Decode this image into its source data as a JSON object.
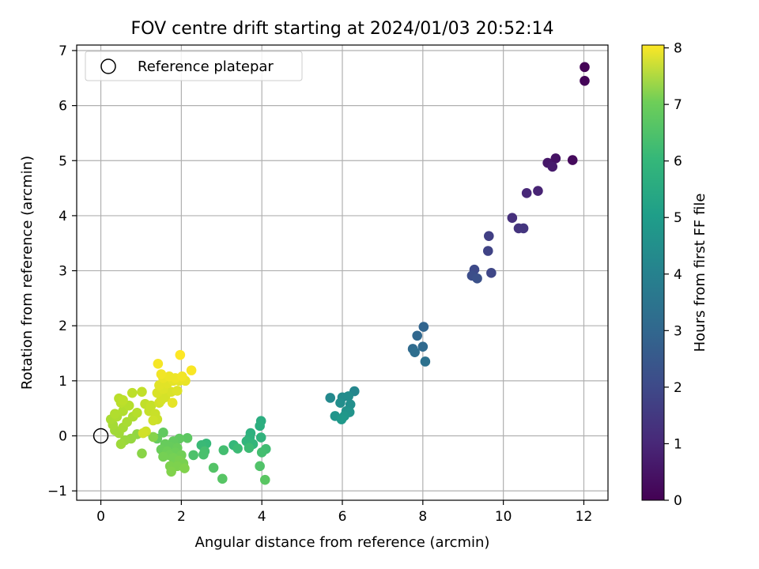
{
  "chart_data": {
    "type": "scatter",
    "title": "FOV centre drift starting at 2024/01/03 20:52:14",
    "xlabel": "Angular distance from reference (arcmin)",
    "ylabel": "Rotation from reference (arcmin)",
    "xlim": [
      -0.6,
      12.6
    ],
    "ylim": [
      -1.17,
      7.1
    ],
    "x_ticks": [
      0,
      2,
      4,
      6,
      8,
      10,
      12
    ],
    "y_ticks": [
      -1,
      0,
      1,
      2,
      3,
      4,
      5,
      6,
      7
    ],
    "grid": true,
    "legend": {
      "placement": "top-left",
      "entries": [
        "Reference platepar"
      ]
    },
    "reference_point": {
      "x": 0,
      "y": 0
    },
    "colorbar": {
      "label": "Hours from first FF file",
      "range": [
        0,
        8.05
      ],
      "ticks": [
        0,
        1,
        2,
        3,
        4,
        5,
        6,
        7,
        8
      ],
      "colormap": "viridis"
    },
    "points": [
      {
        "x": 12.02,
        "y": 6.7,
        "c": 0.05
      },
      {
        "x": 12.02,
        "y": 6.45,
        "c": 0.1
      },
      {
        "x": 11.72,
        "y": 5.01,
        "c": 0.2
      },
      {
        "x": 11.3,
        "y": 5.04,
        "c": 0.4
      },
      {
        "x": 11.1,
        "y": 4.96,
        "c": 0.5
      },
      {
        "x": 11.22,
        "y": 4.89,
        "c": 0.6
      },
      {
        "x": 10.86,
        "y": 4.45,
        "c": 0.8
      },
      {
        "x": 10.58,
        "y": 4.41,
        "c": 0.9
      },
      {
        "x": 10.22,
        "y": 3.96,
        "c": 1.1
      },
      {
        "x": 10.38,
        "y": 3.77,
        "c": 1.2
      },
      {
        "x": 10.5,
        "y": 3.77,
        "c": 1.25
      },
      {
        "x": 9.64,
        "y": 3.63,
        "c": 1.5
      },
      {
        "x": 9.62,
        "y": 3.36,
        "c": 1.6
      },
      {
        "x": 9.28,
        "y": 3.02,
        "c": 1.8
      },
      {
        "x": 9.22,
        "y": 2.91,
        "c": 1.9
      },
      {
        "x": 9.7,
        "y": 2.96,
        "c": 1.7
      },
      {
        "x": 9.35,
        "y": 2.86,
        "c": 2.0
      },
      {
        "x": 8.02,
        "y": 1.98,
        "c": 2.6
      },
      {
        "x": 7.86,
        "y": 1.82,
        "c": 2.7
      },
      {
        "x": 8.0,
        "y": 1.62,
        "c": 2.75
      },
      {
        "x": 7.75,
        "y": 1.58,
        "c": 2.8
      },
      {
        "x": 7.8,
        "y": 1.52,
        "c": 2.9
      },
      {
        "x": 8.06,
        "y": 1.35,
        "c": 3.0
      },
      {
        "x": 6.3,
        "y": 0.81,
        "c": 3.7
      },
      {
        "x": 5.7,
        "y": 0.69,
        "c": 3.8
      },
      {
        "x": 6.0,
        "y": 0.7,
        "c": 3.85
      },
      {
        "x": 6.15,
        "y": 0.72,
        "c": 3.9
      },
      {
        "x": 5.95,
        "y": 0.6,
        "c": 3.95
      },
      {
        "x": 6.2,
        "y": 0.57,
        "c": 4.0
      },
      {
        "x": 6.1,
        "y": 0.45,
        "c": 4.1
      },
      {
        "x": 6.18,
        "y": 0.43,
        "c": 4.15
      },
      {
        "x": 5.82,
        "y": 0.36,
        "c": 4.2
      },
      {
        "x": 6.05,
        "y": 0.36,
        "c": 4.25
      },
      {
        "x": 5.98,
        "y": 0.3,
        "c": 4.3
      },
      {
        "x": 3.98,
        "y": 0.27,
        "c": 5.0
      },
      {
        "x": 3.95,
        "y": 0.18,
        "c": 5.05
      },
      {
        "x": 3.72,
        "y": 0.05,
        "c": 5.1
      },
      {
        "x": 3.7,
        "y": -0.03,
        "c": 5.15
      },
      {
        "x": 3.98,
        "y": -0.03,
        "c": 5.2
      },
      {
        "x": 3.62,
        "y": -0.1,
        "c": 5.25
      },
      {
        "x": 3.78,
        "y": -0.15,
        "c": 5.3
      },
      {
        "x": 3.3,
        "y": -0.17,
        "c": 5.35
      },
      {
        "x": 2.62,
        "y": -0.14,
        "c": 5.4
      },
      {
        "x": 2.5,
        "y": -0.17,
        "c": 5.45
      },
      {
        "x": 3.68,
        "y": -0.22,
        "c": 5.5
      },
      {
        "x": 3.4,
        "y": -0.23,
        "c": 5.5
      },
      {
        "x": 4.1,
        "y": -0.24,
        "c": 5.55
      },
      {
        "x": 3.05,
        "y": -0.26,
        "c": 5.6
      },
      {
        "x": 4.0,
        "y": -0.3,
        "c": 5.6
      },
      {
        "x": 2.58,
        "y": -0.28,
        "c": 5.65
      },
      {
        "x": 2.55,
        "y": -0.34,
        "c": 5.7
      },
      {
        "x": 2.3,
        "y": -0.35,
        "c": 5.75
      },
      {
        "x": 3.95,
        "y": -0.55,
        "c": 5.8
      },
      {
        "x": 2.8,
        "y": -0.58,
        "c": 5.85
      },
      {
        "x": 3.02,
        "y": -0.78,
        "c": 5.9
      },
      {
        "x": 4.08,
        "y": -0.8,
        "c": 5.95
      },
      {
        "x": 2.15,
        "y": -0.04,
        "c": 6.0
      },
      {
        "x": 1.95,
        "y": -0.05,
        "c": 6.05
      },
      {
        "x": 1.55,
        "y": 0.06,
        "c": 6.05
      },
      {
        "x": 1.4,
        "y": -0.05,
        "c": 6.1
      },
      {
        "x": 1.8,
        "y": -0.1,
        "c": 6.1
      },
      {
        "x": 1.6,
        "y": -0.15,
        "c": 6.15
      },
      {
        "x": 1.75,
        "y": -0.2,
        "c": 6.15
      },
      {
        "x": 1.9,
        "y": -0.22,
        "c": 6.2
      },
      {
        "x": 1.5,
        "y": -0.25,
        "c": 6.2
      },
      {
        "x": 1.65,
        "y": -0.28,
        "c": 6.25
      },
      {
        "x": 1.85,
        "y": -0.3,
        "c": 6.25
      },
      {
        "x": 1.7,
        "y": -0.35,
        "c": 6.3
      },
      {
        "x": 2.0,
        "y": -0.35,
        "c": 6.3
      },
      {
        "x": 1.55,
        "y": -0.38,
        "c": 6.35
      },
      {
        "x": 1.8,
        "y": -0.4,
        "c": 6.35
      },
      {
        "x": 1.95,
        "y": -0.45,
        "c": 6.4
      },
      {
        "x": 2.05,
        "y": -0.5,
        "c": 6.4
      },
      {
        "x": 1.72,
        "y": -0.55,
        "c": 6.45
      },
      {
        "x": 1.9,
        "y": -0.55,
        "c": 6.45
      },
      {
        "x": 2.08,
        "y": -0.59,
        "c": 6.5
      },
      {
        "x": 1.75,
        "y": -0.65,
        "c": 6.5
      },
      {
        "x": 1.3,
        "y": -0.02,
        "c": 6.55
      },
      {
        "x": 1.02,
        "y": -0.32,
        "c": 6.6
      },
      {
        "x": 0.9,
        "y": 0.03,
        "c": 6.7
      },
      {
        "x": 0.75,
        "y": -0.05,
        "c": 6.75
      },
      {
        "x": 0.6,
        "y": -0.08,
        "c": 6.8
      },
      {
        "x": 0.5,
        "y": -0.15,
        "c": 6.85
      },
      {
        "x": 0.45,
        "y": 0.05,
        "c": 6.9
      },
      {
        "x": 0.35,
        "y": 0.1,
        "c": 6.9
      },
      {
        "x": 0.55,
        "y": 0.15,
        "c": 6.95
      },
      {
        "x": 0.3,
        "y": 0.2,
        "c": 6.95
      },
      {
        "x": 0.65,
        "y": 0.25,
        "c": 7.0
      },
      {
        "x": 0.25,
        "y": 0.3,
        "c": 7.0
      },
      {
        "x": 0.4,
        "y": 0.35,
        "c": 7.05
      },
      {
        "x": 0.8,
        "y": 0.35,
        "c": 7.05
      },
      {
        "x": 0.35,
        "y": 0.4,
        "c": 7.1
      },
      {
        "x": 0.55,
        "y": 0.45,
        "c": 7.1
      },
      {
        "x": 0.9,
        "y": 0.42,
        "c": 7.15
      },
      {
        "x": 0.7,
        "y": 0.55,
        "c": 7.15
      },
      {
        "x": 0.5,
        "y": 0.6,
        "c": 7.2
      },
      {
        "x": 0.45,
        "y": 0.68,
        "c": 7.2
      },
      {
        "x": 0.55,
        "y": 0.65,
        "c": 7.25
      },
      {
        "x": 0.78,
        "y": 0.78,
        "c": 7.25
      },
      {
        "x": 1.02,
        "y": 0.8,
        "c": 7.3
      },
      {
        "x": 1.1,
        "y": 0.58,
        "c": 7.3
      },
      {
        "x": 1.25,
        "y": 0.55,
        "c": 7.35
      },
      {
        "x": 1.2,
        "y": 0.45,
        "c": 7.35
      },
      {
        "x": 1.35,
        "y": 0.4,
        "c": 7.4
      },
      {
        "x": 1.4,
        "y": 0.3,
        "c": 7.4
      },
      {
        "x": 1.3,
        "y": 0.28,
        "c": 7.45
      },
      {
        "x": 1.12,
        "y": 0.08,
        "c": 7.45
      },
      {
        "x": 1.05,
        "y": 0.05,
        "c": 7.5
      },
      {
        "x": 1.45,
        "y": 0.6,
        "c": 7.5
      },
      {
        "x": 1.5,
        "y": 0.65,
        "c": 7.55
      },
      {
        "x": 1.6,
        "y": 0.7,
        "c": 7.55
      },
      {
        "x": 1.4,
        "y": 0.78,
        "c": 7.6
      },
      {
        "x": 1.75,
        "y": 0.8,
        "c": 7.6
      },
      {
        "x": 1.55,
        "y": 0.85,
        "c": 7.65
      },
      {
        "x": 1.9,
        "y": 0.82,
        "c": 7.65
      },
      {
        "x": 1.45,
        "y": 0.92,
        "c": 7.7
      },
      {
        "x": 1.65,
        "y": 0.95,
        "c": 7.7
      },
      {
        "x": 1.8,
        "y": 1.0,
        "c": 7.75
      },
      {
        "x": 1.95,
        "y": 1.0,
        "c": 7.75
      },
      {
        "x": 2.1,
        "y": 1.0,
        "c": 7.8
      },
      {
        "x": 1.55,
        "y": 1.05,
        "c": 7.8
      },
      {
        "x": 1.7,
        "y": 1.08,
        "c": 7.85
      },
      {
        "x": 1.85,
        "y": 1.05,
        "c": 7.85
      },
      {
        "x": 2.02,
        "y": 1.08,
        "c": 7.9
      },
      {
        "x": 1.5,
        "y": 1.12,
        "c": 7.9
      },
      {
        "x": 1.78,
        "y": 0.6,
        "c": 7.75
      },
      {
        "x": 1.42,
        "y": 1.31,
        "c": 7.95
      },
      {
        "x": 2.25,
        "y": 1.19,
        "c": 8.0
      },
      {
        "x": 1.97,
        "y": 1.47,
        "c": 8.05
      }
    ]
  }
}
